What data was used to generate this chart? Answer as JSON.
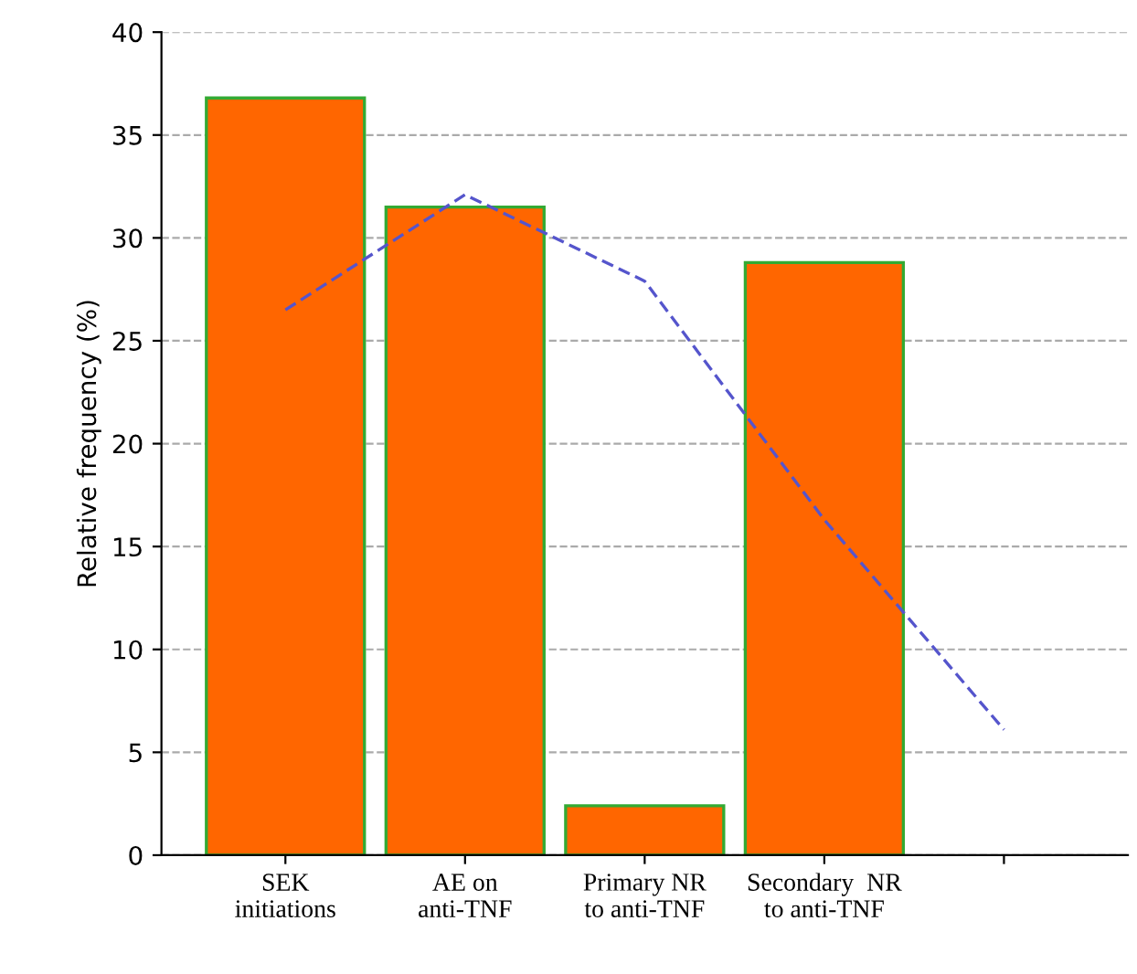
{
  "chart_data": {
    "type": "bar",
    "ylabel": "Relative frequency (%)",
    "categories": [
      "SEK\ninitiations",
      "AE on\nanti-TNF",
      "Primary NR\nto anti-TNF",
      "Secondary  NR\nto anti-TNF",
      null
    ],
    "series": [
      {
        "type": "bar",
        "color": "#ff6600",
        "values": [
          36.8,
          31.5,
          2.4,
          28.8,
          null
        ]
      },
      {
        "type": "line",
        "color": "#5555cc",
        "line_style": "dashed",
        "values": [
          26.5,
          32.1,
          27.9,
          16.3,
          6.1
        ]
      }
    ],
    "ylim": [
      0,
      40
    ],
    "yticks": [
      0,
      5,
      10,
      15,
      20,
      25,
      30,
      35,
      40
    ],
    "grid": "y"
  }
}
